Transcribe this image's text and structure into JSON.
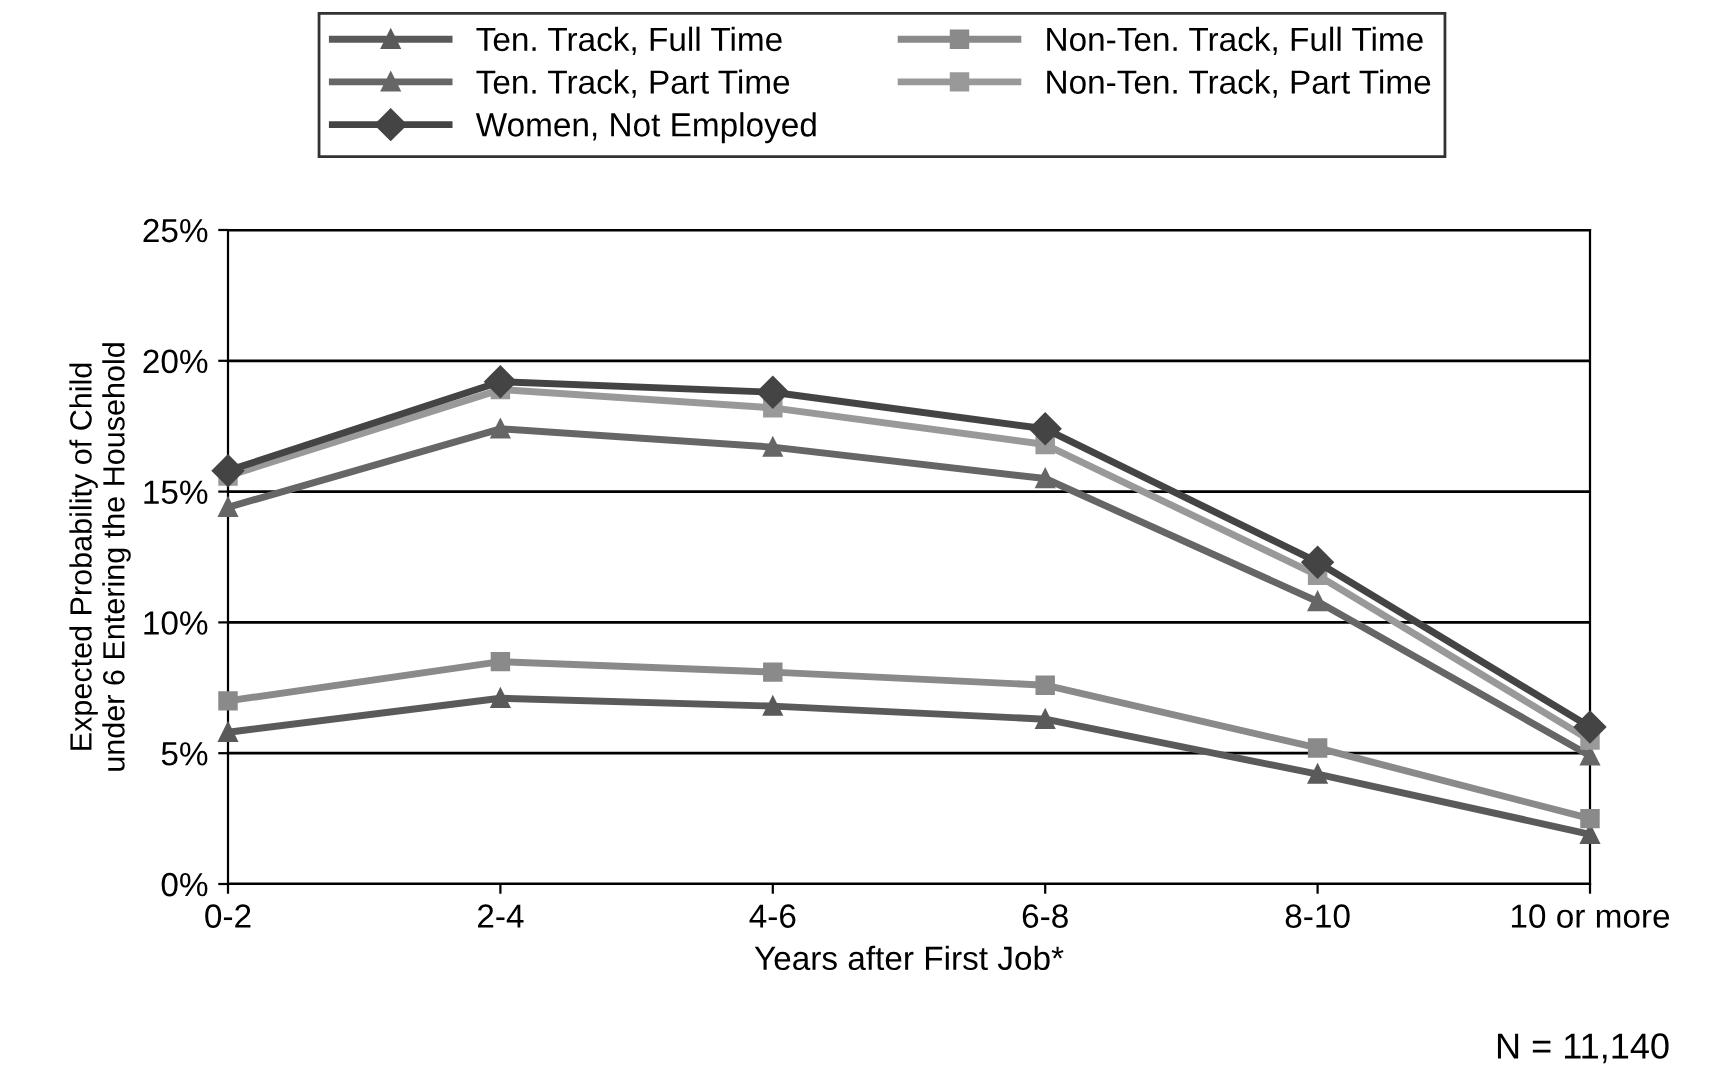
{
  "chart_data": {
    "type": "line",
    "xlabel": "Years after First Job*",
    "ylabel": "Expected Probability of Child\nunder 6 Entering the Household",
    "categories": [
      "0-2",
      "2-4",
      "4-6",
      "6-8",
      "8-10",
      "10 or more"
    ],
    "ylim": [
      0,
      25
    ],
    "yticks": [
      {
        "value": 0,
        "label": "0%"
      },
      {
        "value": 5,
        "label": "5%"
      },
      {
        "value": 10,
        "label": "10%"
      },
      {
        "value": 15,
        "label": "15%"
      },
      {
        "value": 20,
        "label": "20%"
      },
      {
        "value": 25,
        "label": "25%"
      }
    ],
    "grid": "y",
    "legend": "top",
    "series": [
      {
        "name": "Ten. Track, Full Time",
        "color": "#5a5a5a",
        "marker": "triangle",
        "values": [
          5.8,
          7.1,
          6.8,
          6.3,
          4.2,
          1.9
        ]
      },
      {
        "name": "Non-Ten. Track, Full Time",
        "color": "#8a8a8a",
        "marker": "square",
        "values": [
          7.0,
          8.5,
          8.1,
          7.6,
          5.2,
          2.5
        ]
      },
      {
        "name": "Ten. Track, Part Time",
        "color": "#666666",
        "marker": "triangle",
        "values": [
          14.4,
          17.4,
          16.7,
          15.5,
          10.8,
          4.9
        ]
      },
      {
        "name": "Non-Ten. Track, Part Time",
        "color": "#999999",
        "marker": "square",
        "values": [
          15.6,
          18.9,
          18.2,
          16.8,
          11.8,
          5.5
        ]
      },
      {
        "name": "Women, Not Employed",
        "color": "#444444",
        "marker": "diamond",
        "values": [
          15.8,
          19.2,
          18.8,
          17.4,
          12.3,
          6.0
        ]
      }
    ],
    "annotations": [
      "N = 11,140"
    ]
  }
}
